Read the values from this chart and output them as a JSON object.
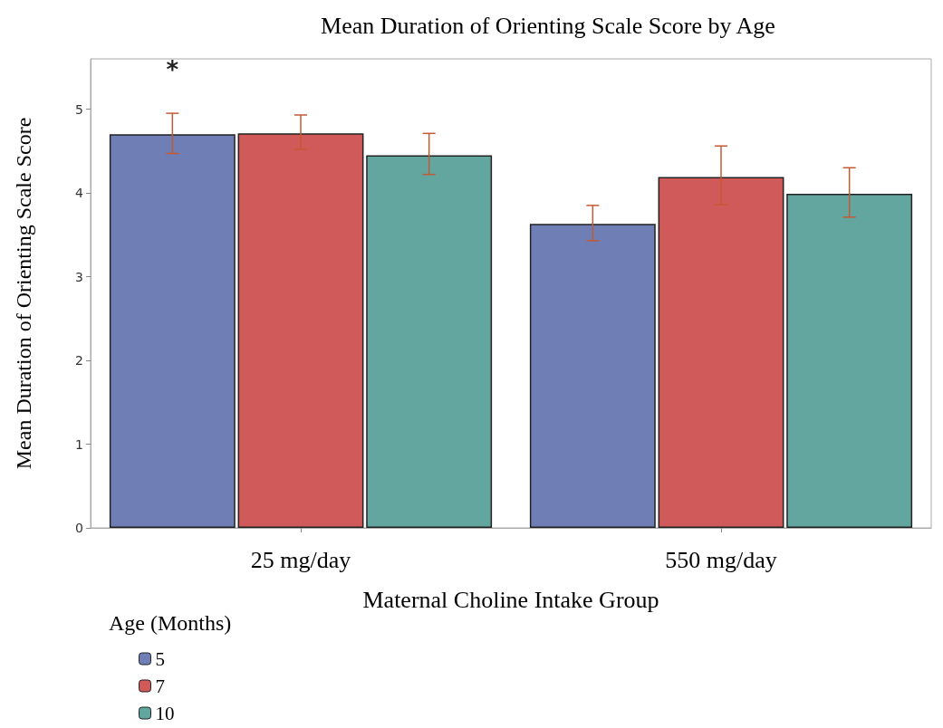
{
  "chart_data": {
    "type": "bar",
    "title": "Mean Duration of Orienting Scale Score by Age",
    "xlabel": "Maternal Choline Intake Group",
    "ylabel": "Mean Duration of Orienting Scale Score",
    "legend_title": "Age (Months)",
    "categories": [
      "25 mg/day",
      "550 mg/day"
    ],
    "series": [
      {
        "name": "5",
        "color": "#6f7fb5",
        "values": [
          4.7,
          3.63
        ],
        "errors": [
          [
            4.47,
            4.95
          ],
          [
            3.43,
            3.85
          ]
        ]
      },
      {
        "name": "7",
        "color": "#d05a5a",
        "values": [
          4.71,
          4.19
        ],
        "errors": [
          [
            4.52,
            4.93
          ],
          [
            3.86,
            4.56
          ]
        ]
      },
      {
        "name": "10",
        "color": "#63a6a0",
        "values": [
          4.45,
          3.99
        ],
        "errors": [
          [
            4.22,
            4.71
          ],
          [
            3.71,
            4.3
          ]
        ]
      }
    ],
    "annotations": [
      "*"
    ],
    "ylim": [
      0,
      5.6
    ],
    "yticks": [
      0,
      1,
      2,
      3,
      4,
      5
    ],
    "grid": false,
    "legend": "bottom left"
  }
}
